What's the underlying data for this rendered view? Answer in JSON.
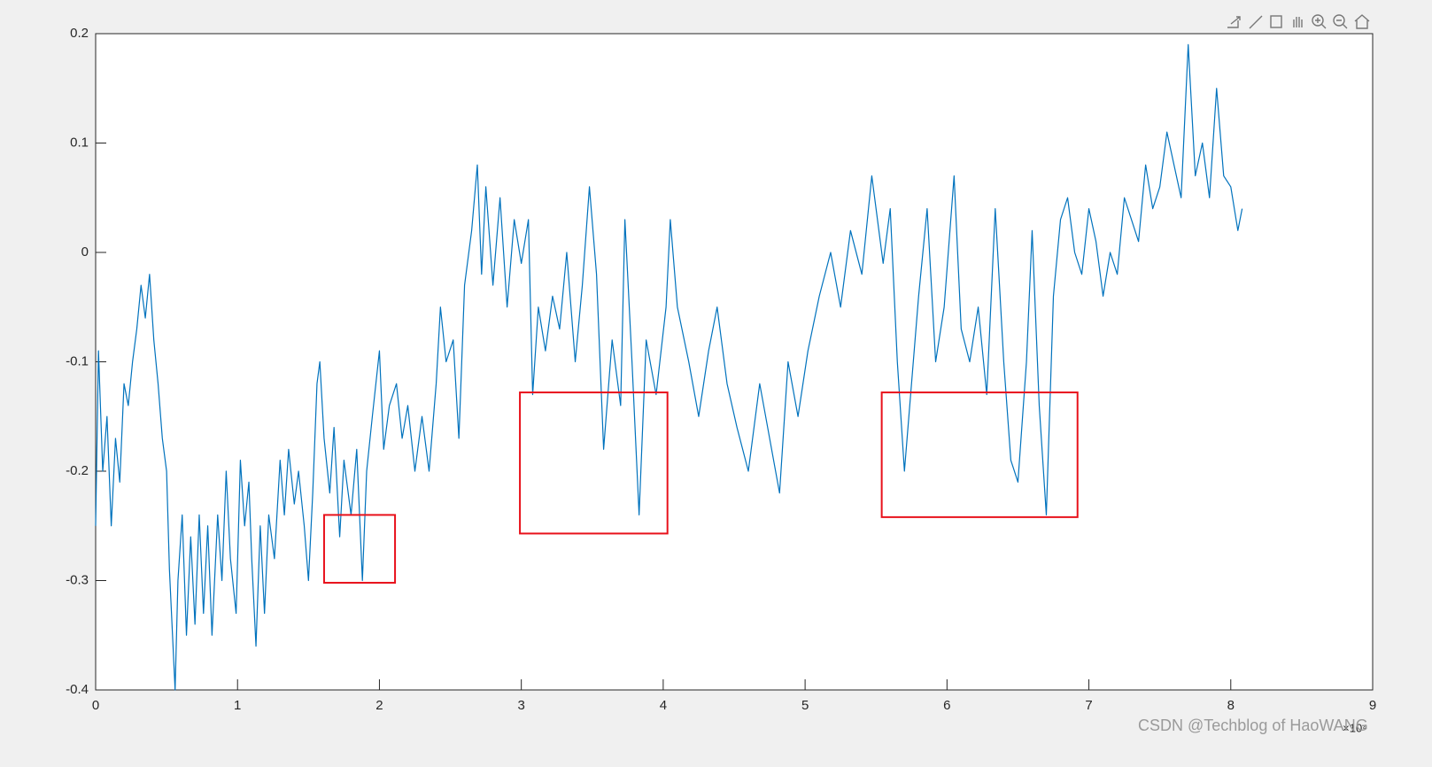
{
  "chart_data": {
    "type": "line",
    "x_exponent_label": "×10⁴",
    "watermark": "CSDN @Techblog of HaoWANG",
    "xlim": [
      0,
      9
    ],
    "xticks": [
      0,
      1,
      2,
      3,
      4,
      5,
      6,
      7,
      8,
      9
    ],
    "ylim": [
      -0.4,
      0.2
    ],
    "yticks": [
      0.2,
      0.1,
      0,
      -0.1,
      -0.2,
      -0.3,
      -0.4
    ],
    "color": "#0072bd",
    "x": [
      0,
      0.02,
      0.05,
      0.08,
      0.11,
      0.14,
      0.17,
      0.2,
      0.23,
      0.26,
      0.29,
      0.32,
      0.35,
      0.38,
      0.41,
      0.44,
      0.47,
      0.5,
      0.52,
      0.56,
      0.58,
      0.61,
      0.64,
      0.67,
      0.7,
      0.73,
      0.76,
      0.79,
      0.82,
      0.86,
      0.89,
      0.92,
      0.95,
      0.99,
      1.02,
      1.05,
      1.08,
      1.1,
      1.13,
      1.16,
      1.19,
      1.22,
      1.26,
      1.3,
      1.33,
      1.36,
      1.4,
      1.43,
      1.47,
      1.5,
      1.53,
      1.56,
      1.58,
      1.61,
      1.65,
      1.68,
      1.72,
      1.75,
      1.8,
      1.84,
      1.88,
      1.91,
      1.95,
      2.0,
      2.03,
      2.07,
      2.12,
      2.16,
      2.2,
      2.25,
      2.3,
      2.35,
      2.4,
      2.43,
      2.47,
      2.52,
      2.56,
      2.6,
      2.65,
      2.69,
      2.72,
      2.75,
      2.8,
      2.85,
      2.9,
      2.95,
      3.0,
      3.05,
      3.08,
      3.12,
      3.17,
      3.22,
      3.27,
      3.32,
      3.38,
      3.43,
      3.48,
      3.53,
      3.58,
      3.64,
      3.7,
      3.73,
      3.78,
      3.83,
      3.88,
      3.95,
      4.02,
      4.05,
      4.1,
      4.18,
      4.25,
      4.32,
      4.38,
      4.45,
      4.52,
      4.6,
      4.68,
      4.75,
      4.82,
      4.88,
      4.95,
      5.02,
      5.1,
      5.18,
      5.25,
      5.32,
      5.4,
      5.47,
      5.55,
      5.6,
      5.65,
      5.7,
      5.75,
      5.8,
      5.86,
      5.92,
      5.98,
      6.05,
      6.1,
      6.16,
      6.22,
      6.28,
      6.34,
      6.4,
      6.45,
      6.5,
      6.56,
      6.6,
      6.65,
      6.7,
      6.75,
      6.8,
      6.85,
      6.9,
      6.95,
      7.0,
      7.05,
      7.1,
      7.15,
      7.2,
      7.25,
      7.3,
      7.35,
      7.4,
      7.45,
      7.5,
      7.55,
      7.6,
      7.65,
      7.7,
      7.75,
      7.8,
      7.85,
      7.9,
      7.95,
      8.0,
      8.05,
      8.08
    ],
    "values": [
      -0.25,
      -0.09,
      -0.2,
      -0.15,
      -0.25,
      -0.17,
      -0.21,
      -0.12,
      -0.14,
      -0.1,
      -0.07,
      -0.03,
      -0.06,
      -0.02,
      -0.08,
      -0.12,
      -0.17,
      -0.2,
      -0.29,
      -0.4,
      -0.3,
      -0.24,
      -0.35,
      -0.26,
      -0.34,
      -0.24,
      -0.33,
      -0.25,
      -0.35,
      -0.24,
      -0.3,
      -0.2,
      -0.28,
      -0.33,
      -0.19,
      -0.25,
      -0.21,
      -0.28,
      -0.36,
      -0.25,
      -0.33,
      -0.24,
      -0.28,
      -0.19,
      -0.24,
      -0.18,
      -0.23,
      -0.2,
      -0.25,
      -0.3,
      -0.22,
      -0.12,
      -0.1,
      -0.17,
      -0.22,
      -0.16,
      -0.26,
      -0.19,
      -0.24,
      -0.18,
      -0.3,
      -0.2,
      -0.15,
      -0.09,
      -0.18,
      -0.14,
      -0.12,
      -0.17,
      -0.14,
      -0.2,
      -0.15,
      -0.2,
      -0.12,
      -0.05,
      -0.1,
      -0.08,
      -0.17,
      -0.03,
      0.02,
      0.08,
      -0.02,
      0.06,
      -0.03,
      0.05,
      -0.05,
      0.03,
      -0.01,
      0.03,
      -0.13,
      -0.05,
      -0.09,
      -0.04,
      -0.07,
      0,
      -0.1,
      -0.03,
      0.06,
      -0.02,
      -0.18,
      -0.08,
      -0.14,
      0.03,
      -0.1,
      -0.24,
      -0.08,
      -0.13,
      -0.05,
      0.03,
      -0.05,
      -0.1,
      -0.15,
      -0.09,
      -0.05,
      -0.12,
      -0.16,
      -0.2,
      -0.12,
      -0.17,
      -0.22,
      -0.1,
      -0.15,
      -0.09,
      -0.04,
      0,
      -0.05,
      0.02,
      -0.02,
      0.07,
      -0.01,
      0.04,
      -0.1,
      -0.2,
      -0.12,
      -0.04,
      0.04,
      -0.1,
      -0.05,
      0.07,
      -0.07,
      -0.1,
      -0.05,
      -0.13,
      0.04,
      -0.1,
      -0.19,
      -0.21,
      -0.1,
      0.02,
      -0.14,
      -0.24,
      -0.04,
      0.03,
      0.05,
      0,
      -0.02,
      0.04,
      0.01,
      -0.04,
      0,
      -0.02,
      0.05,
      0.03,
      0.01,
      0.08,
      0.04,
      0.06,
      0.11,
      0.08,
      0.05,
      0.19,
      0.07,
      0.1,
      0.05,
      0.15,
      0.07,
      0.06,
      0.02,
      0.04
    ],
    "highlight_color": "#e8111b",
    "highlight_boxes": [
      {
        "x": [
          1.61,
          2.11
        ],
        "y": [
          -0.302,
          -0.24
        ]
      },
      {
        "x": [
          2.99,
          4.03
        ],
        "y": [
          -0.257,
          -0.128
        ]
      },
      {
        "x": [
          5.54,
          6.92
        ],
        "y": [
          -0.242,
          -0.128
        ]
      }
    ]
  }
}
